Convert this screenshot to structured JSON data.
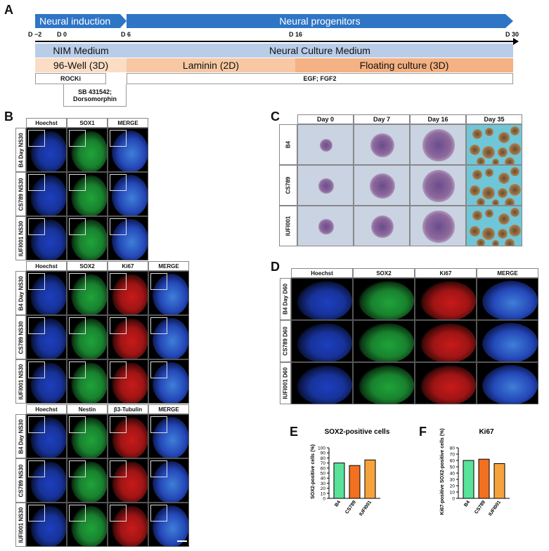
{
  "panels": {
    "a": "A",
    "b": "B",
    "c": "C",
    "d": "D",
    "e": "E",
    "f": "F"
  },
  "timeline": {
    "neural_induction": "Neural induction",
    "neural_progenitors": "Neural progenitors",
    "ticks": [
      "D −2",
      "D 0",
      "D 6",
      "D 16",
      "D 30"
    ],
    "nim_medium": "NIM Medium",
    "neural_culture_medium": "Neural Culture Medium",
    "well_96": "96-Well (3D)",
    "laminin": "Laminin (2D)",
    "floating": "Floating culture (3D)",
    "rocki": "ROCKi",
    "egf": "EGF; FGF2",
    "sb_line1": "SB 431542;",
    "sb_line2": "Dorsomorphin",
    "colors": {
      "blue_arrow": "#2e75c6",
      "light_blue": "#b9cde9",
      "light_orange": "#fbdcc4",
      "mid_orange": "#f7c8a3",
      "dark_orange": "#f4b183"
    }
  },
  "panel_b": {
    "rows": [
      "B4 Day NS30",
      "CS789 NS30",
      "IUFI001 NS30"
    ],
    "block1": [
      "Hoechst",
      "SOX1",
      "MERGE"
    ],
    "block2": [
      "Hoechst",
      "SOX2",
      "Ki67",
      "MERGE"
    ],
    "block3": [
      "Hoechst",
      "Nestin",
      "β3-Tubulin",
      "MERGE"
    ]
  },
  "panel_c": {
    "cols": [
      "Day 0",
      "Day 7",
      "Day 16",
      "Day 35"
    ],
    "rows": [
      "B4",
      "CS789",
      "IUFI001"
    ]
  },
  "panel_d": {
    "cols": [
      "Hoechst",
      "SOX2",
      "Ki67",
      "MERGE"
    ],
    "rows": [
      "B4 Day D60",
      "CS789 D60",
      "IUFI001 D60"
    ]
  },
  "chart_data": [
    {
      "type": "bar",
      "title": "SOX2-positive cells",
      "ylabel": "SOX2-positive cells (%)",
      "categories": [
        "B4",
        "CS789",
        "IUFI001"
      ],
      "values": [
        70,
        65,
        76
      ],
      "colors": [
        "#59e29a",
        "#f2701f",
        "#f7a33d"
      ],
      "ylim": [
        0,
        100
      ],
      "yticks": [
        0,
        10,
        20,
        30,
        40,
        50,
        60,
        70,
        80,
        90,
        100
      ]
    },
    {
      "type": "bar",
      "title": "Ki67",
      "ylabel": "Ki67-positive SOX2-positive cells (%)",
      "categories": [
        "B4",
        "CS789",
        "IUFI001"
      ],
      "values": [
        60,
        62,
        55
      ],
      "colors": [
        "#59e29a",
        "#f2701f",
        "#f7a33d"
      ],
      "ylim": [
        0,
        80
      ],
      "yticks": [
        0,
        10,
        20,
        30,
        40,
        50,
        60,
        70,
        80
      ]
    }
  ]
}
